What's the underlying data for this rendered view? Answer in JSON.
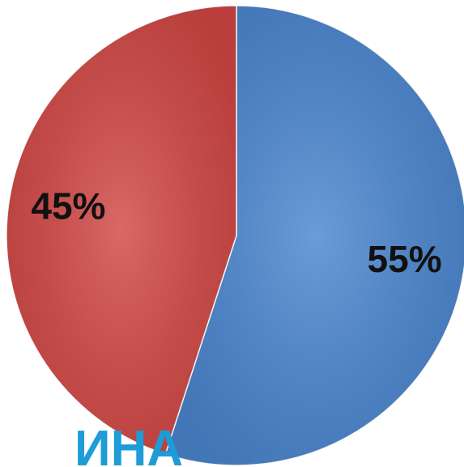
{
  "chart_data": {
    "type": "pie",
    "values": [
      55,
      45
    ],
    "value_labels": [
      "55%",
      "45%"
    ],
    "colors": [
      "#4a86d0",
      "#d24744"
    ],
    "annotations": [
      "ИНА"
    ]
  }
}
